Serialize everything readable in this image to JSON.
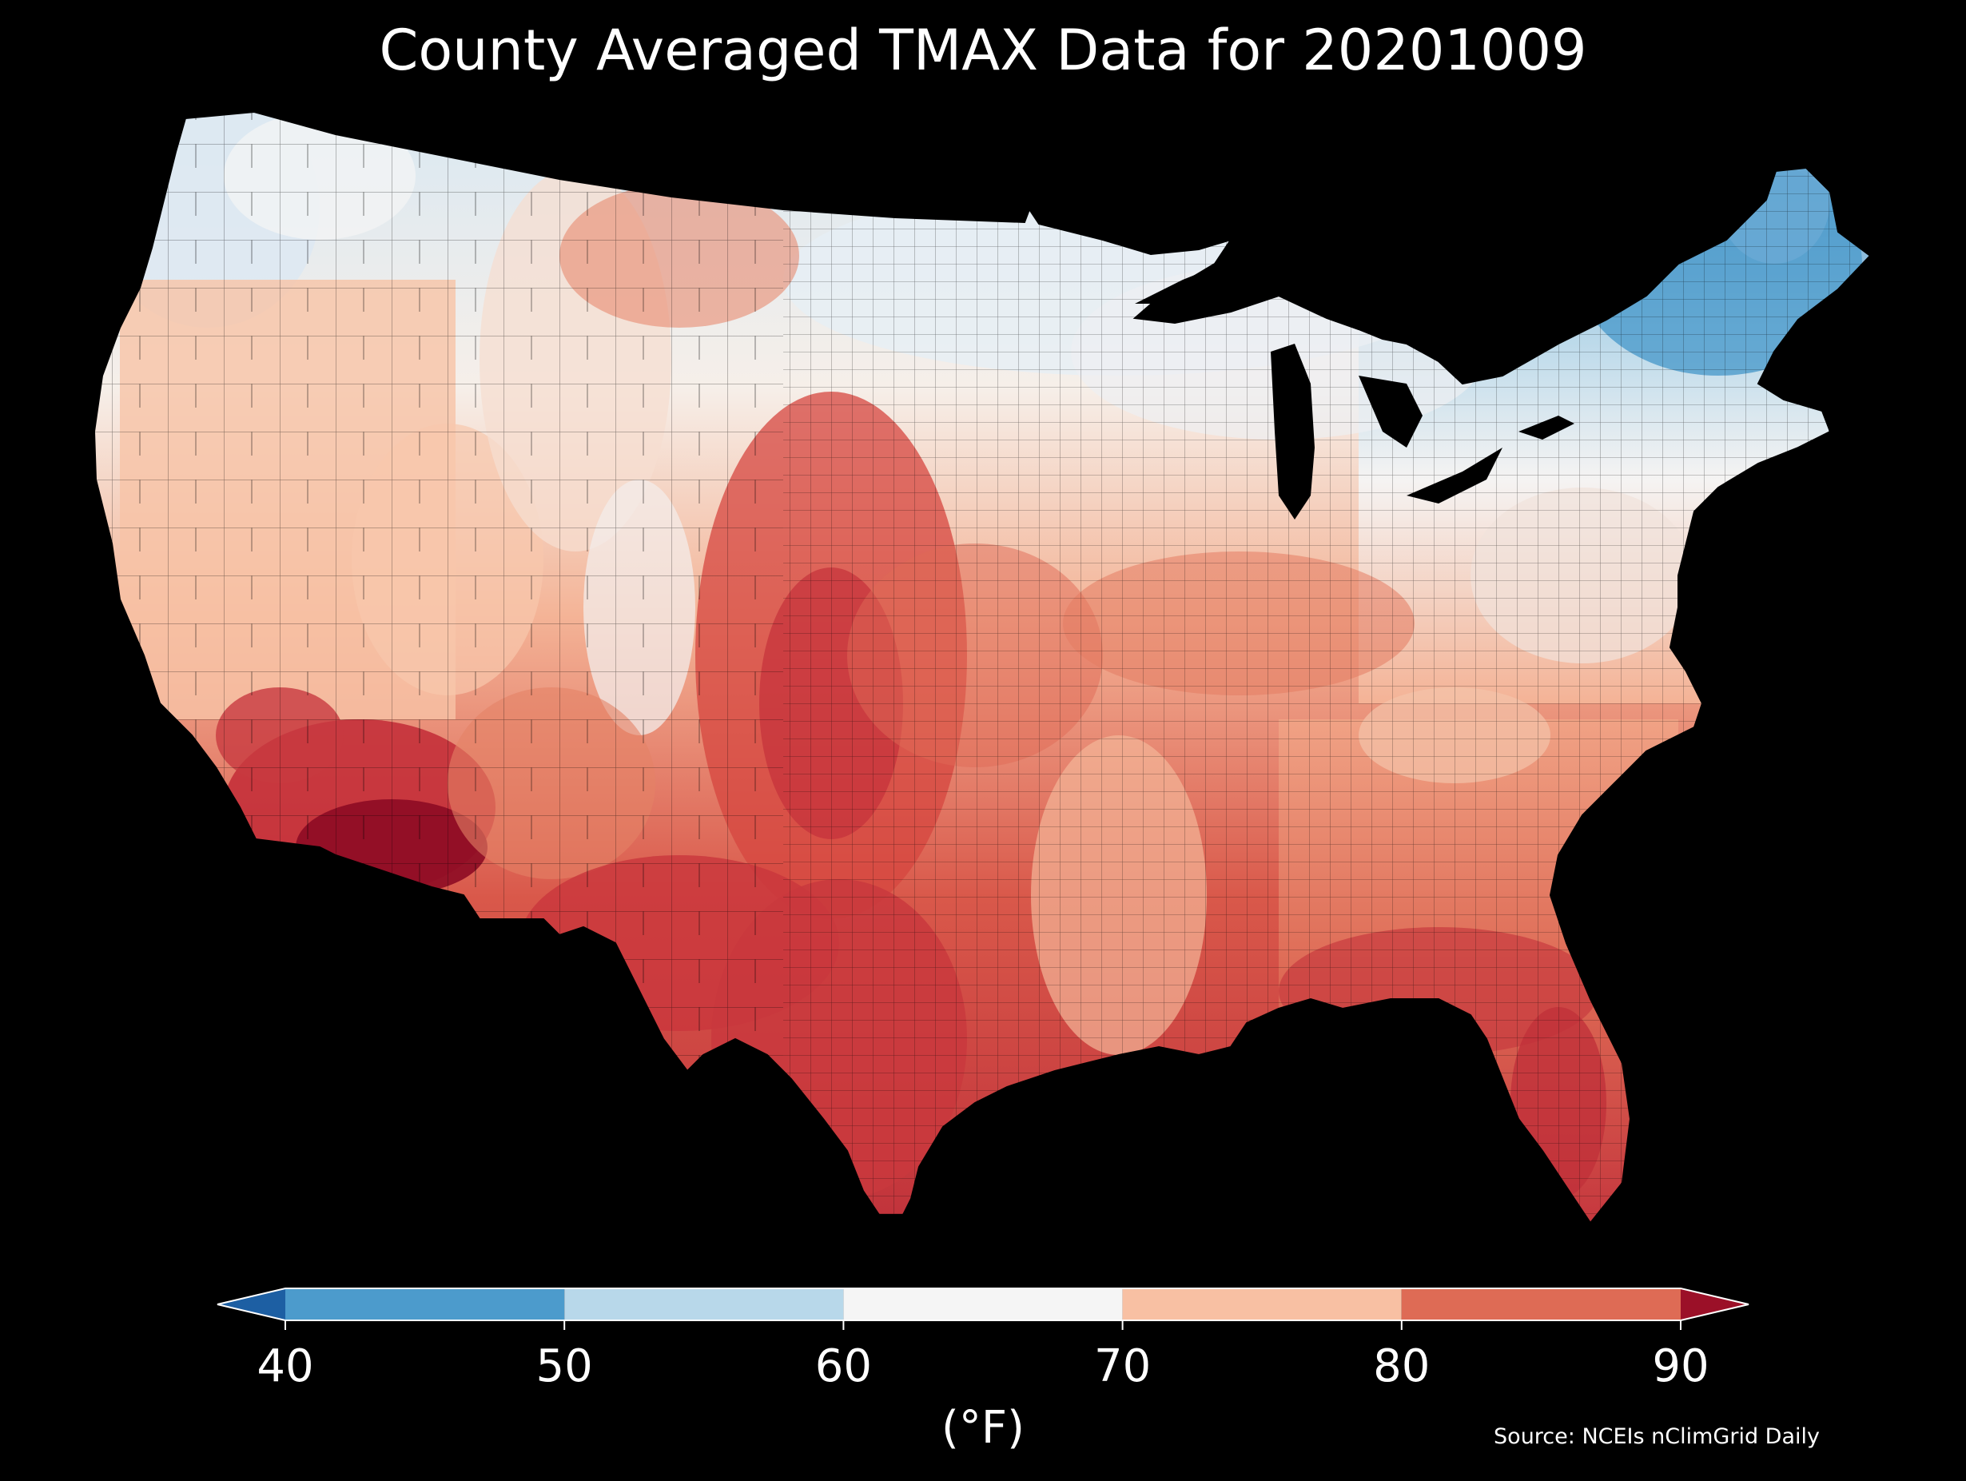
{
  "title": "County Averaged TMAX Data for 20201009",
  "colorbar": {
    "units": "(°F)",
    "ticks": [
      "40",
      "50",
      "60",
      "70",
      "80",
      "90"
    ],
    "bins": [
      {
        "from": 40,
        "to": 50,
        "color": "#4c9bcc"
      },
      {
        "from": 50,
        "to": 60,
        "color": "#b8d8ea"
      },
      {
        "from": 60,
        "to": 70,
        "color": "#f5f5f5"
      },
      {
        "from": 70,
        "to": 80,
        "color": "#f8c0a3"
      },
      {
        "from": 80,
        "to": 90,
        "color": "#de6b55"
      }
    ],
    "under_color": "#1d5fa3",
    "over_color": "#9b1028",
    "extend": "both"
  },
  "source": "Source: NCEIs nClimGrid Daily",
  "map": {
    "region": "Contiguous United States",
    "background_color": "#000000",
    "boundary_color": "#000000"
  }
}
